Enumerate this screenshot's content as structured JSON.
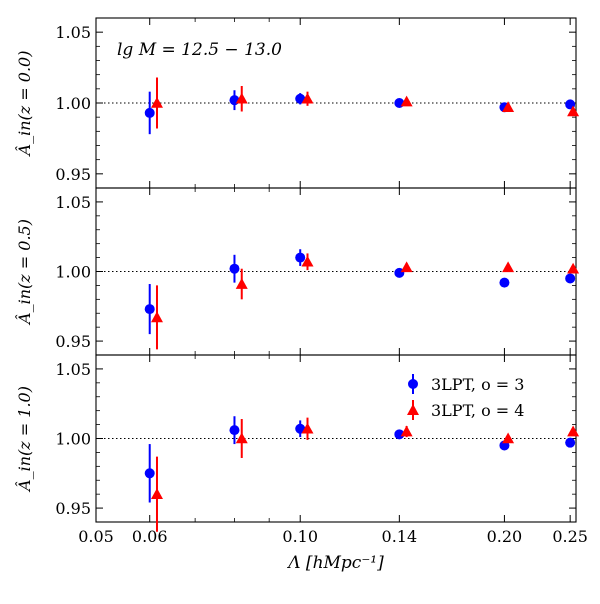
{
  "chart_data": [
    {
      "type": "scatter",
      "panel_label": "lg M = 12.5 − 13.0",
      "ylabel": "Â_in(z = 0.0)",
      "ylim": [
        0.94,
        1.06
      ],
      "yticks": [
        "1.05",
        "1.00",
        "0.95"
      ],
      "reference_line": 1.0,
      "series": [
        {
          "name": "3LPT, o = 3",
          "color": "#0000ff",
          "marker": "circle",
          "x": [
            0.06,
            0.08,
            0.1,
            0.14,
            0.2,
            0.25
          ],
          "y": [
            0.993,
            1.002,
            1.003,
            1.0,
            0.997,
            0.999
          ],
          "err": [
            0.015,
            0.007,
            0.004,
            0.002,
            0.002,
            0.001
          ]
        },
        {
          "name": "3LPT, o = 4",
          "color": "#ff0000",
          "marker": "triangle",
          "x": [
            0.0615,
            0.082,
            0.1025,
            0.1435,
            0.2025,
            0.2525
          ],
          "y": [
            1.0,
            1.003,
            1.003,
            1.001,
            0.997,
            0.994
          ],
          "err": [
            0.018,
            0.009,
            0.005,
            0.002,
            0.002,
            0.001
          ]
        }
      ]
    },
    {
      "type": "scatter",
      "ylabel": "Â_in(z = 0.5)",
      "ylim": [
        0.94,
        1.06
      ],
      "yticks": [
        "1.05",
        "1.00",
        "0.95"
      ],
      "reference_line": 1.0,
      "series": [
        {
          "name": "3LPT, o = 3",
          "color": "#0000ff",
          "marker": "circle",
          "x": [
            0.06,
            0.08,
            0.1,
            0.14,
            0.2,
            0.25
          ],
          "y": [
            0.973,
            1.002,
            1.01,
            0.999,
            0.992,
            0.995
          ],
          "err": [
            0.018,
            0.01,
            0.006,
            0.003,
            0.002,
            0.002
          ]
        },
        {
          "name": "3LPT, o = 4",
          "color": "#ff0000",
          "marker": "triangle",
          "x": [
            0.0615,
            0.082,
            0.1025,
            0.1435,
            0.2025,
            0.2525
          ],
          "y": [
            0.967,
            0.991,
            1.007,
            1.003,
            1.003,
            1.002
          ],
          "err": [
            0.023,
            0.011,
            0.006,
            0.003,
            0.002,
            0.002
          ]
        }
      ]
    },
    {
      "type": "scatter",
      "ylabel": "Â_in(z = 1.0)",
      "ylim": [
        0.94,
        1.06
      ],
      "yticks": [
        "1.05",
        "1.00",
        "0.95"
      ],
      "xticks": [
        "0.05",
        "0.06",
        "0.10",
        "0.14",
        "0.20",
        "0.25"
      ],
      "xlabel": "Λ [hMpc⁻¹]",
      "reference_line": 1.0,
      "series": [
        {
          "name": "3LPT, o = 3",
          "color": "#0000ff",
          "marker": "circle",
          "x": [
            0.06,
            0.08,
            0.1,
            0.14,
            0.2,
            0.25
          ],
          "y": [
            0.975,
            1.006,
            1.007,
            1.003,
            0.995,
            0.997
          ],
          "err": [
            0.021,
            0.01,
            0.006,
            0.003,
            0.002,
            0.002
          ]
        },
        {
          "name": "3LPT, o = 4",
          "color": "#ff0000",
          "marker": "triangle",
          "x": [
            0.0615,
            0.082,
            0.1025,
            0.1435,
            0.2025,
            0.2525
          ],
          "y": [
            0.96,
            1.0,
            1.007,
            1.005,
            1.0,
            1.005
          ],
          "err": [
            0.027,
            0.014,
            0.008,
            0.004,
            0.002,
            0.002
          ]
        }
      ]
    }
  ],
  "legend": {
    "location": "top-right of bottom panel",
    "entries": [
      {
        "label": "3LPT, o = 3",
        "color": "#0000ff",
        "marker": "circle"
      },
      {
        "label": "3LPT, o = 4",
        "color": "#ff0000",
        "marker": "triangle"
      }
    ]
  },
  "x_axis": {
    "scale": "log",
    "xlim": [
      0.05,
      0.255
    ],
    "ticks": [
      0.05,
      0.06,
      0.1,
      0.14,
      0.2,
      0.25
    ],
    "tick_labels": [
      "0.05",
      "0.06",
      "0.10",
      "0.14",
      "0.20",
      "0.25"
    ],
    "label": "Λ [hMpc⁻¹]"
  }
}
